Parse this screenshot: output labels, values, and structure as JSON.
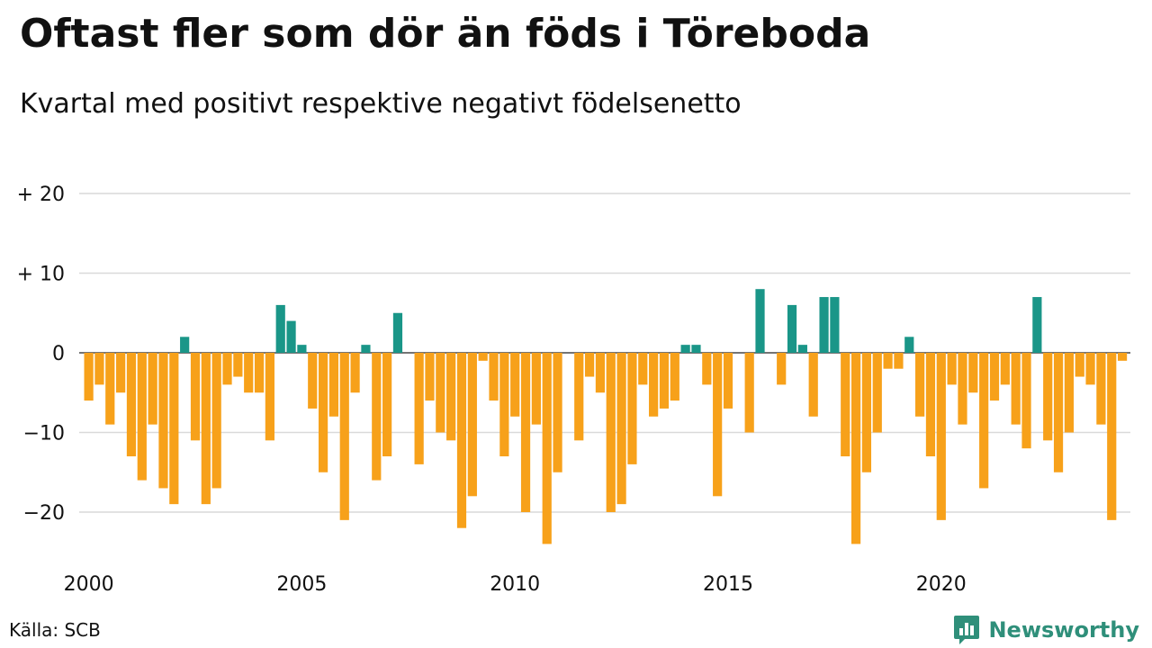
{
  "title": "Oftast fler som dör än föds i Töreboda",
  "subtitle": "Kvartal med positivt respektive negativt födelsenetto",
  "source": "Källa: SCB",
  "brand": {
    "name": "Newsworthy",
    "icon": "newsworthy-chart-bubble-icon"
  },
  "colors": {
    "positive": "#1a9688",
    "negative": "#f7a11a",
    "grid": "#d9d9d9",
    "brand": "#2f8f7a"
  },
  "chart_data": {
    "type": "bar",
    "x_start": "2000 Q1",
    "x_labels": [
      "2000",
      "2005",
      "2010",
      "2015",
      "2020"
    ],
    "y_ticks": [
      {
        "value": 20,
        "label": "+ 20"
      },
      {
        "value": 10,
        "label": "+ 10"
      },
      {
        "value": 0,
        "label": "0"
      },
      {
        "value": -10,
        "label": "−10"
      },
      {
        "value": -20,
        "label": "−20"
      }
    ],
    "ylim": [
      -26,
      20
    ],
    "grid": true,
    "values": [
      -6,
      -4,
      -9,
      -5,
      -13,
      -16,
      -9,
      -17,
      -19,
      2,
      -11,
      -19,
      -17,
      -4,
      -3,
      -5,
      -5,
      -11,
      6,
      4,
      1,
      -7,
      -15,
      -8,
      -21,
      -5,
      1,
      -16,
      -13,
      5,
      0,
      -14,
      -6,
      -10,
      -11,
      -22,
      -18,
      -1,
      -6,
      -13,
      -8,
      -20,
      -9,
      -24,
      -15,
      0,
      -11,
      -3,
      -5,
      -20,
      -19,
      -14,
      -4,
      -8,
      -7,
      -6,
      1,
      1,
      -4,
      -18,
      -7,
      0,
      -10,
      8,
      0,
      -4,
      6,
      1,
      -8,
      7,
      7,
      -13,
      -24,
      -15,
      -10,
      -2,
      -2,
      2,
      -8,
      -13,
      -21,
      -4,
      -9,
      -5,
      -17,
      -6,
      -4,
      -9,
      -12,
      7,
      -11,
      -15,
      -10,
      -3,
      -4,
      -9,
      -21,
      -1
    ]
  }
}
